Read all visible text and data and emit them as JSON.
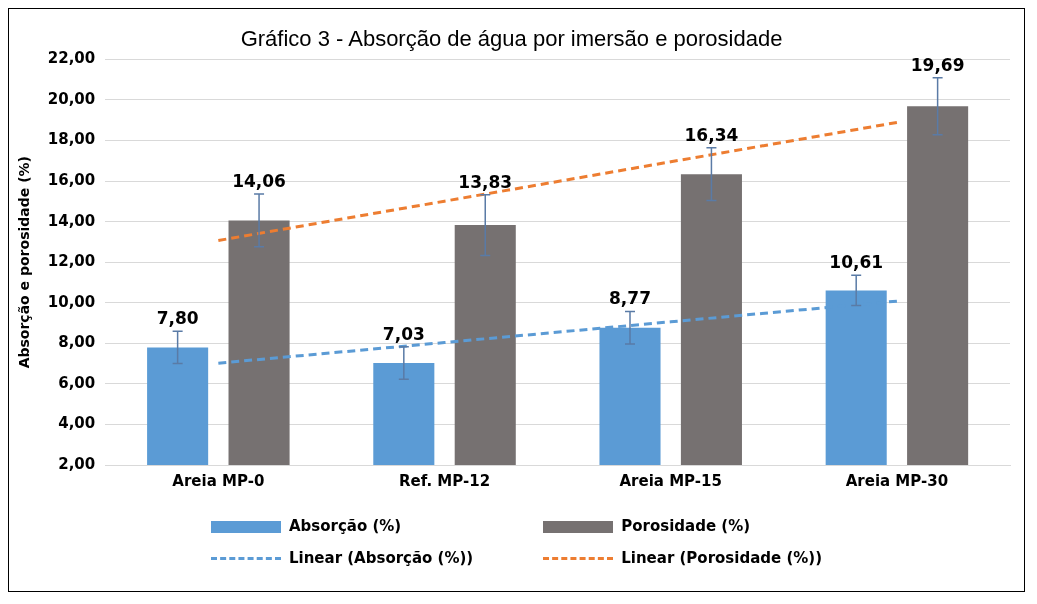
{
  "chart_data": {
    "type": "bar",
    "title": "Gráfico 3 - Absorção de água por imersão e porosidade",
    "ylabel": "Absorção e porosidade (%)",
    "categories": [
      "Areia MP-0",
      "Ref. MP-12",
      "Areia MP-15",
      "Areia MP-30"
    ],
    "series": [
      {
        "name": "Absorção (%)",
        "color": "#5b9bd5",
        "values": [
          7.8,
          7.03,
          8.77,
          10.61
        ],
        "value_labels": [
          "7,80",
          "7,03",
          "8,77",
          "10,61"
        ],
        "errors": [
          0.8,
          0.8,
          0.8,
          0.75
        ]
      },
      {
        "name": "Porosidade (%)",
        "color": "#767171",
        "values": [
          14.06,
          13.83,
          16.34,
          19.69
        ],
        "value_labels": [
          "14,06",
          "13,83",
          "16,34",
          "19,69"
        ],
        "errors": [
          1.3,
          1.5,
          1.3,
          1.4
        ]
      },
      {
        "name": "Linear (Absorção (%))",
        "type": "line",
        "color": "#5b9bd5",
        "line_style": "dashed",
        "marker": "none",
        "values": [
          7.02,
          8.04,
          9.06,
          10.08
        ]
      },
      {
        "name": "Linear (Porosidade (%))",
        "type": "line",
        "color": "#ed7d31",
        "line_style": "dashed",
        "marker": "none",
        "values": [
          13.07,
          15.01,
          16.95,
          18.89
        ]
      }
    ],
    "ylim": [
      2,
      22
    ],
    "yticks": [
      {
        "value": 2,
        "label": "2,00"
      },
      {
        "value": 4,
        "label": "4,00"
      },
      {
        "value": 6,
        "label": "6,00"
      },
      {
        "value": 8,
        "label": "8,00"
      },
      {
        "value": 10,
        "label": "10,00"
      },
      {
        "value": 12,
        "label": "12,00"
      },
      {
        "value": 14,
        "label": "14,00"
      },
      {
        "value": 16,
        "label": "16,00"
      },
      {
        "value": 18,
        "label": "18,00"
      },
      {
        "value": 20,
        "label": "20,00"
      },
      {
        "value": 22,
        "label": "22,00"
      }
    ],
    "grid": "y",
    "legend": "bottom"
  }
}
